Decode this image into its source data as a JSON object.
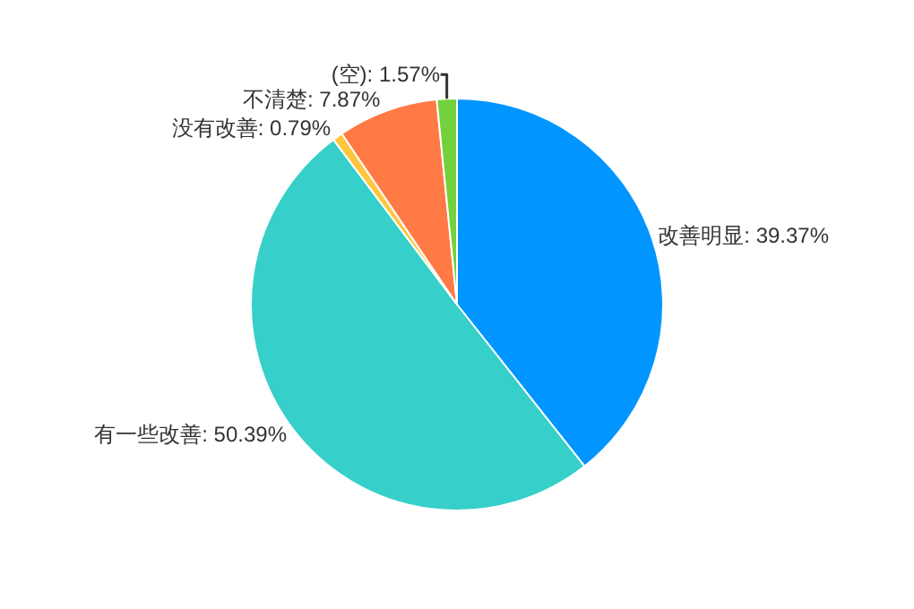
{
  "chart_data": {
    "type": "pie",
    "categories": [
      "改善明显",
      "有一些改善",
      "没有改善",
      "不清楚",
      "(空)"
    ],
    "values": [
      39.37,
      50.39,
      0.79,
      7.87,
      1.57
    ],
    "value_labels": [
      "39.37%",
      "50.39%",
      "0.79%",
      "7.87%",
      "1.57%"
    ],
    "colors": [
      "#0095ff",
      "#36cfc9",
      "#ffc53d",
      "#ff7a45",
      "#73d13d"
    ],
    "legend": false
  }
}
